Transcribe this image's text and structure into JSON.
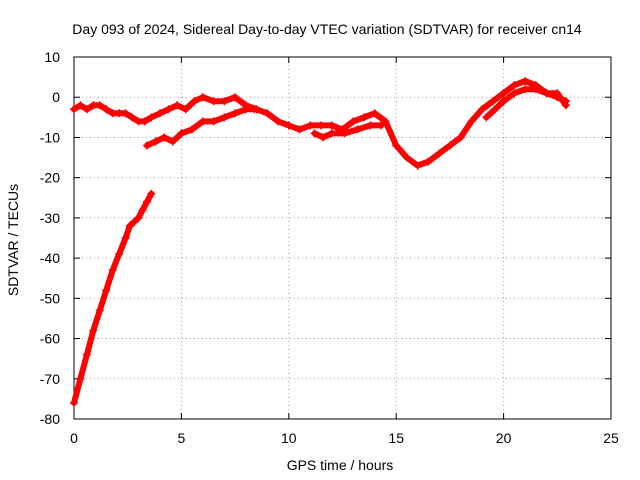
{
  "chart_data": {
    "type": "scatter",
    "title": "Day 093 of 2024, Sidereal Day-to-day VTEC variation (SDTVAR) for receiver cn14",
    "xlabel": "GPS time / hours",
    "ylabel": "SDTVAR / TECUs",
    "xlim": [
      0,
      25
    ],
    "ylim": [
      -80,
      10
    ],
    "xticks": [
      0,
      5,
      10,
      15,
      20,
      25
    ],
    "yticks": [
      10,
      0,
      -10,
      -20,
      -30,
      -40,
      -50,
      -60,
      -70,
      -80
    ],
    "grid": true,
    "series": [
      {
        "name": "SDTVAR",
        "color": "#ff0000",
        "marker": "plus",
        "segments": [
          {
            "x": [
              0.0,
              0.3,
              0.6,
              0.9,
              1.2,
              1.5,
              1.8,
              2.1,
              2.4,
              2.6,
              2.8,
              3.0,
              3.2,
              3.4,
              3.6
            ],
            "y": [
              -76,
              -70,
              -64,
              -58,
              -53,
              -48,
              -43,
              -39,
              -35,
              -32,
              -31,
              -30,
              -28,
              -26,
              -24
            ]
          },
          {
            "x": [
              0.0,
              0.3,
              0.6,
              0.9,
              1.2,
              1.5,
              1.8,
              2.1,
              2.4,
              2.7,
              3.0,
              3.3,
              3.6,
              4.0,
              4.4,
              4.8,
              5.2,
              5.6,
              6.0,
              6.5,
              7.0,
              7.5,
              8.0,
              8.5,
              9.0,
              9.5,
              10.0,
              10.5,
              11.0,
              11.5,
              12.0,
              12.5,
              13.0,
              13.5,
              14.0,
              14.5,
              15.0,
              15.5,
              16.0,
              16.5,
              17.0,
              17.5,
              18.0,
              18.5,
              19.0,
              19.5,
              20.0,
              20.5,
              21.0,
              21.5,
              22.0,
              22.5,
              22.9
            ],
            "y": [
              -3,
              -2,
              -3,
              -2,
              -2,
              -3,
              -4,
              -4,
              -4,
              -5,
              -6,
              -6,
              -5,
              -4,
              -3,
              -2,
              -3,
              -1,
              0,
              -1,
              -1,
              0,
              -2,
              -3,
              -4,
              -6,
              -7,
              -8,
              -7,
              -7,
              -7,
              -8,
              -6,
              -5,
              -4,
              -6,
              -12,
              -15,
              -17,
              -16,
              -14,
              -12,
              -10,
              -6,
              -3,
              -1,
              1,
              3,
              4,
              3,
              1,
              0,
              -1
            ]
          },
          {
            "x": [
              3.4,
              3.8,
              4.2,
              4.6,
              5.0,
              5.5,
              6.0,
              6.5,
              7.0,
              7.5,
              8.0,
              8.4
            ],
            "y": [
              -12,
              -11,
              -10,
              -11,
              -9,
              -8,
              -6,
              -6,
              -5,
              -4,
              -3,
              -3
            ]
          },
          {
            "x": [
              11.2,
              11.6,
              12.0,
              12.6,
              13.2,
              13.8,
              14.3
            ],
            "y": [
              -9,
              -10,
              -9,
              -9,
              -8,
              -7,
              -7
            ]
          },
          {
            "x": [
              19.2,
              19.6,
              20.0,
              20.5,
              21.0,
              21.5,
              22.0,
              22.5,
              22.9
            ],
            "y": [
              -5,
              -3,
              -1,
              1,
              2,
              2,
              1,
              1,
              -2
            ]
          }
        ]
      }
    ]
  }
}
